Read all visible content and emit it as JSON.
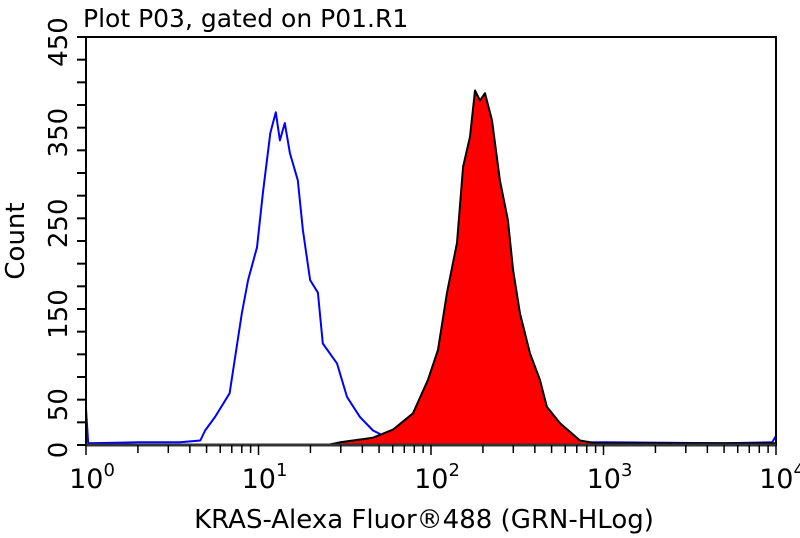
{
  "chart_data": {
    "type": "area",
    "title": "Plot P03, gated on P01.R1",
    "xlabel": "KRAS-Alexa Fluor®488 (GRN-HLog)",
    "ylabel": "Count",
    "xscale": "log",
    "xlim": [
      1,
      10000
    ],
    "ylim": [
      0,
      450
    ],
    "x_tick_labels": [
      {
        "base": "10",
        "exp": "0"
      },
      {
        "base": "10",
        "exp": "1"
      },
      {
        "base": "10",
        "exp": "2"
      },
      {
        "base": "10",
        "exp": "3"
      },
      {
        "base": "10",
        "exp": "4"
      }
    ],
    "y_ticks": [
      0,
      50,
      150,
      250,
      350,
      450
    ],
    "y_minor_step": 25,
    "grid": false,
    "series": [
      {
        "style": "line",
        "color": "#0000ff",
        "points": [
          [
            1,
            40
          ],
          [
            1.03,
            2
          ],
          [
            2,
            3
          ],
          [
            3.5,
            3
          ],
          [
            4.6,
            5
          ],
          [
            4.9,
            16
          ],
          [
            5.6,
            31
          ],
          [
            6.8,
            57
          ],
          [
            8.0,
            145
          ],
          [
            8.7,
            182
          ],
          [
            9.8,
            218
          ],
          [
            10.6,
            278
          ],
          [
            11.7,
            344
          ],
          [
            12.6,
            367
          ],
          [
            13.3,
            336
          ],
          [
            14.2,
            355
          ],
          [
            15.2,
            322
          ],
          [
            16.9,
            292
          ],
          [
            18.1,
            237
          ],
          [
            19.9,
            182
          ],
          [
            22.1,
            168
          ],
          [
            23.6,
            112
          ],
          [
            28.5,
            90
          ],
          [
            32.6,
            53
          ],
          [
            38.7,
            31
          ],
          [
            46.1,
            16
          ],
          [
            60.2,
            5
          ],
          [
            78.6,
            3
          ],
          [
            200,
            2
          ],
          [
            1000,
            3
          ],
          [
            5000,
            2
          ],
          [
            9500,
            3
          ],
          [
            10000,
            10
          ]
        ]
      },
      {
        "style": "filled",
        "color": "#ff0000",
        "outline": "#000000",
        "points": [
          [
            25,
            0
          ],
          [
            29.7,
            3
          ],
          [
            46.1,
            8
          ],
          [
            60.2,
            17
          ],
          [
            78.6,
            35
          ],
          [
            96.1,
            72
          ],
          [
            109.8,
            105
          ],
          [
            123.8,
            168
          ],
          [
            141.5,
            223
          ],
          [
            153.4,
            307
          ],
          [
            168.3,
            340
          ],
          [
            179.9,
            391
          ],
          [
            192.4,
            380
          ],
          [
            205.7,
            388
          ],
          [
            225.8,
            358
          ],
          [
            251,
            292
          ],
          [
            279,
            248
          ],
          [
            299,
            193
          ],
          [
            328,
            145
          ],
          [
            375,
            101
          ],
          [
            428,
            72
          ],
          [
            470,
            42
          ],
          [
            560,
            24
          ],
          [
            731,
            5
          ],
          [
            900,
            2
          ],
          [
            3000,
            2
          ],
          [
            10000,
            2
          ]
        ]
      }
    ]
  }
}
